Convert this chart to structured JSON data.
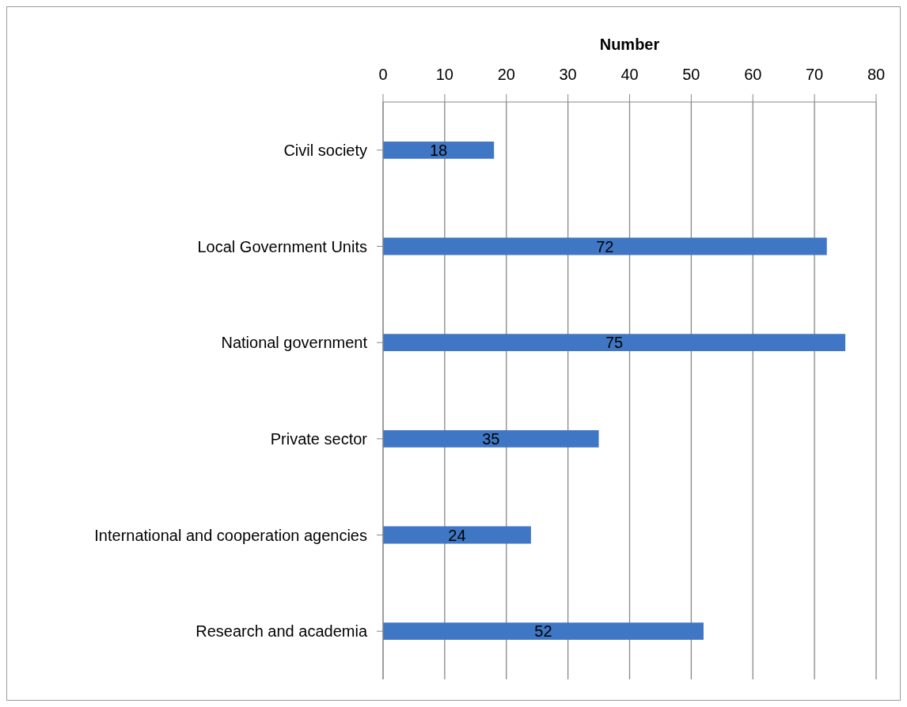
{
  "chart_data": {
    "type": "bar",
    "orientation": "horizontal",
    "xlabel": "Number",
    "categories": [
      "Civil society",
      "Local Government Units",
      "National government",
      "Private sector",
      "International and cooperation agencies",
      "Research and academia"
    ],
    "values": [
      18,
      72,
      75,
      35,
      24,
      52
    ],
    "color": "#3f77c4",
    "xlim": [
      0,
      80
    ],
    "xticks": [
      0,
      10,
      20,
      30,
      40,
      50,
      60,
      70,
      80
    ],
    "grid": "x",
    "data_labels": true,
    "legend": false
  }
}
